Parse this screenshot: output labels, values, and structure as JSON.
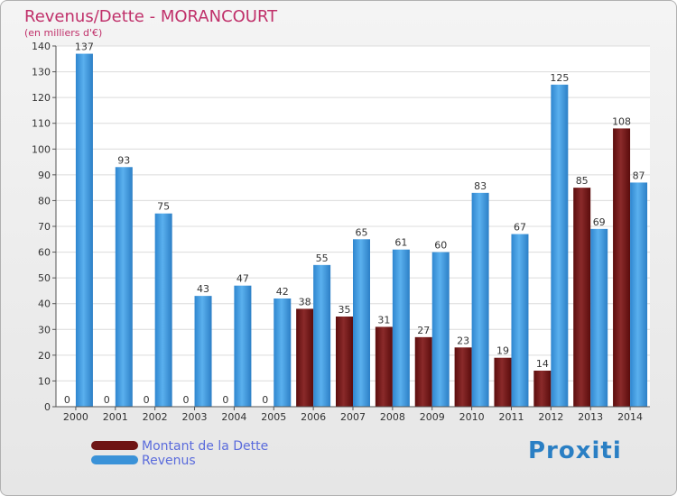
{
  "chart_data": {
    "type": "bar",
    "title": "Revenus/Dette - MORANCOURT",
    "subtitle": "(en milliers d'€)",
    "categories": [
      "2000",
      "2001",
      "2002",
      "2003",
      "2004",
      "2005",
      "2006",
      "2007",
      "2008",
      "2009",
      "2010",
      "2011",
      "2012",
      "2013",
      "2014"
    ],
    "series": [
      {
        "name": "Montant de la Dette",
        "color": "#7a1a1a",
        "values": [
          0,
          0,
          0,
          0,
          0,
          0,
          38,
          35,
          31,
          27,
          23,
          19,
          14,
          85,
          108
        ]
      },
      {
        "name": "Revenus",
        "color": "#3a92d8",
        "values": [
          137,
          93,
          75,
          43,
          47,
          42,
          55,
          65,
          61,
          60,
          83,
          67,
          125,
          69,
          87
        ]
      }
    ],
    "y_ticks": [
      0,
      10,
      20,
      30,
      40,
      50,
      60,
      70,
      80,
      90,
      100,
      110,
      120,
      130,
      140
    ],
    "ylim": [
      0,
      140
    ],
    "grid": true,
    "legend_position": "bottom-left"
  },
  "logo": {
    "text": "Proxiti"
  }
}
